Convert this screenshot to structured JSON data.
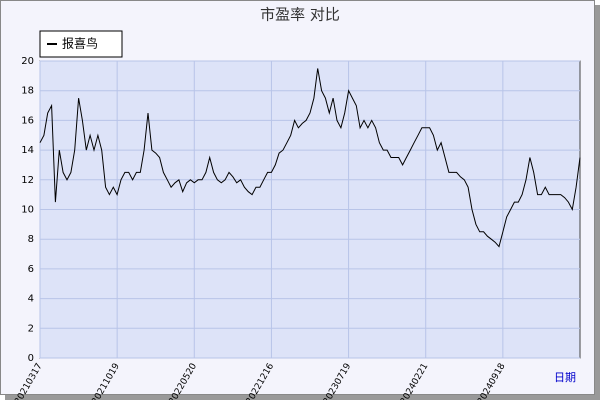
{
  "chart_data": {
    "type": "line",
    "title": "市盈率  对比",
    "x_label": "日期",
    "categories": [
      "20210317",
      null,
      null,
      null,
      null,
      null,
      null,
      null,
      null,
      null,
      null,
      null,
      null,
      null,
      null,
      null,
      null,
      null,
      null,
      null,
      "20211019",
      null,
      null,
      null,
      null,
      null,
      null,
      null,
      null,
      null,
      null,
      null,
      null,
      null,
      null,
      null,
      null,
      null,
      null,
      null,
      "20220520",
      null,
      null,
      null,
      null,
      null,
      null,
      null,
      null,
      null,
      null,
      null,
      null,
      null,
      null,
      null,
      null,
      null,
      null,
      null,
      "20221216",
      null,
      null,
      null,
      null,
      null,
      null,
      null,
      null,
      null,
      null,
      null,
      null,
      null,
      null,
      null,
      null,
      null,
      null,
      null,
      "20230719",
      null,
      null,
      null,
      null,
      null,
      null,
      null,
      null,
      null,
      null,
      null,
      null,
      null,
      null,
      null,
      null,
      null,
      null,
      null,
      "20240221",
      null,
      null,
      null,
      null,
      null,
      null,
      null,
      null,
      null,
      null,
      null,
      null,
      null,
      null,
      null,
      null,
      null,
      null,
      null,
      "20240918",
      null,
      null,
      null,
      null,
      null,
      null,
      null,
      null,
      null,
      null,
      null,
      null,
      null,
      null,
      null,
      null,
      null,
      null,
      null,
      null
    ],
    "series": [
      {
        "name": "报喜鸟",
        "color": "#000000",
        "values": [
          14.5,
          15,
          16.5,
          17,
          10.5,
          14,
          12.5,
          12,
          12.5,
          14,
          17.5,
          16,
          14,
          15,
          14,
          15,
          14,
          11.5,
          11,
          11.5,
          11,
          12,
          12.5,
          12.5,
          12,
          12.5,
          12.5,
          14,
          16.5,
          14,
          13.8,
          13.5,
          12.5,
          12,
          11.5,
          11.8,
          12,
          11.2,
          11.8,
          12,
          11.8,
          12,
          12,
          12.5,
          13.5,
          12.5,
          12,
          11.8,
          12,
          12.5,
          12.2,
          11.8,
          12,
          11.5,
          11.2,
          11,
          11.5,
          11.5,
          12,
          12.5,
          12.5,
          13,
          13.8,
          14,
          14.5,
          15,
          16,
          15.5,
          15.8,
          16,
          16.5,
          17.5,
          19.5,
          18,
          17.5,
          16.5,
          17.5,
          16,
          15.5,
          16.5,
          18,
          17.5,
          17,
          15.5,
          16,
          15.5,
          16,
          15.5,
          14.5,
          14,
          14,
          13.5,
          13.5,
          13.5,
          13,
          13.5,
          14,
          14.5,
          15,
          15.5,
          15.5,
          15.5,
          15,
          14,
          14.5,
          13.5,
          12.5,
          12.5,
          12.5,
          12.2,
          12,
          11.5,
          10,
          9,
          8.5,
          8.5,
          8.2,
          8,
          7.8,
          7.5,
          8.5,
          9.5,
          10,
          10.5,
          10.5,
          11,
          12,
          13.5,
          12.5,
          11,
          11,
          11.5,
          11,
          11,
          11,
          11,
          10.8,
          10.5,
          10,
          11.5,
          13.5
        ]
      }
    ],
    "ylim": [
      0,
      20
    ],
    "yticks": [
      0,
      2,
      4,
      6,
      8,
      10,
      12,
      14,
      16,
      18,
      20
    ],
    "grid": true
  }
}
